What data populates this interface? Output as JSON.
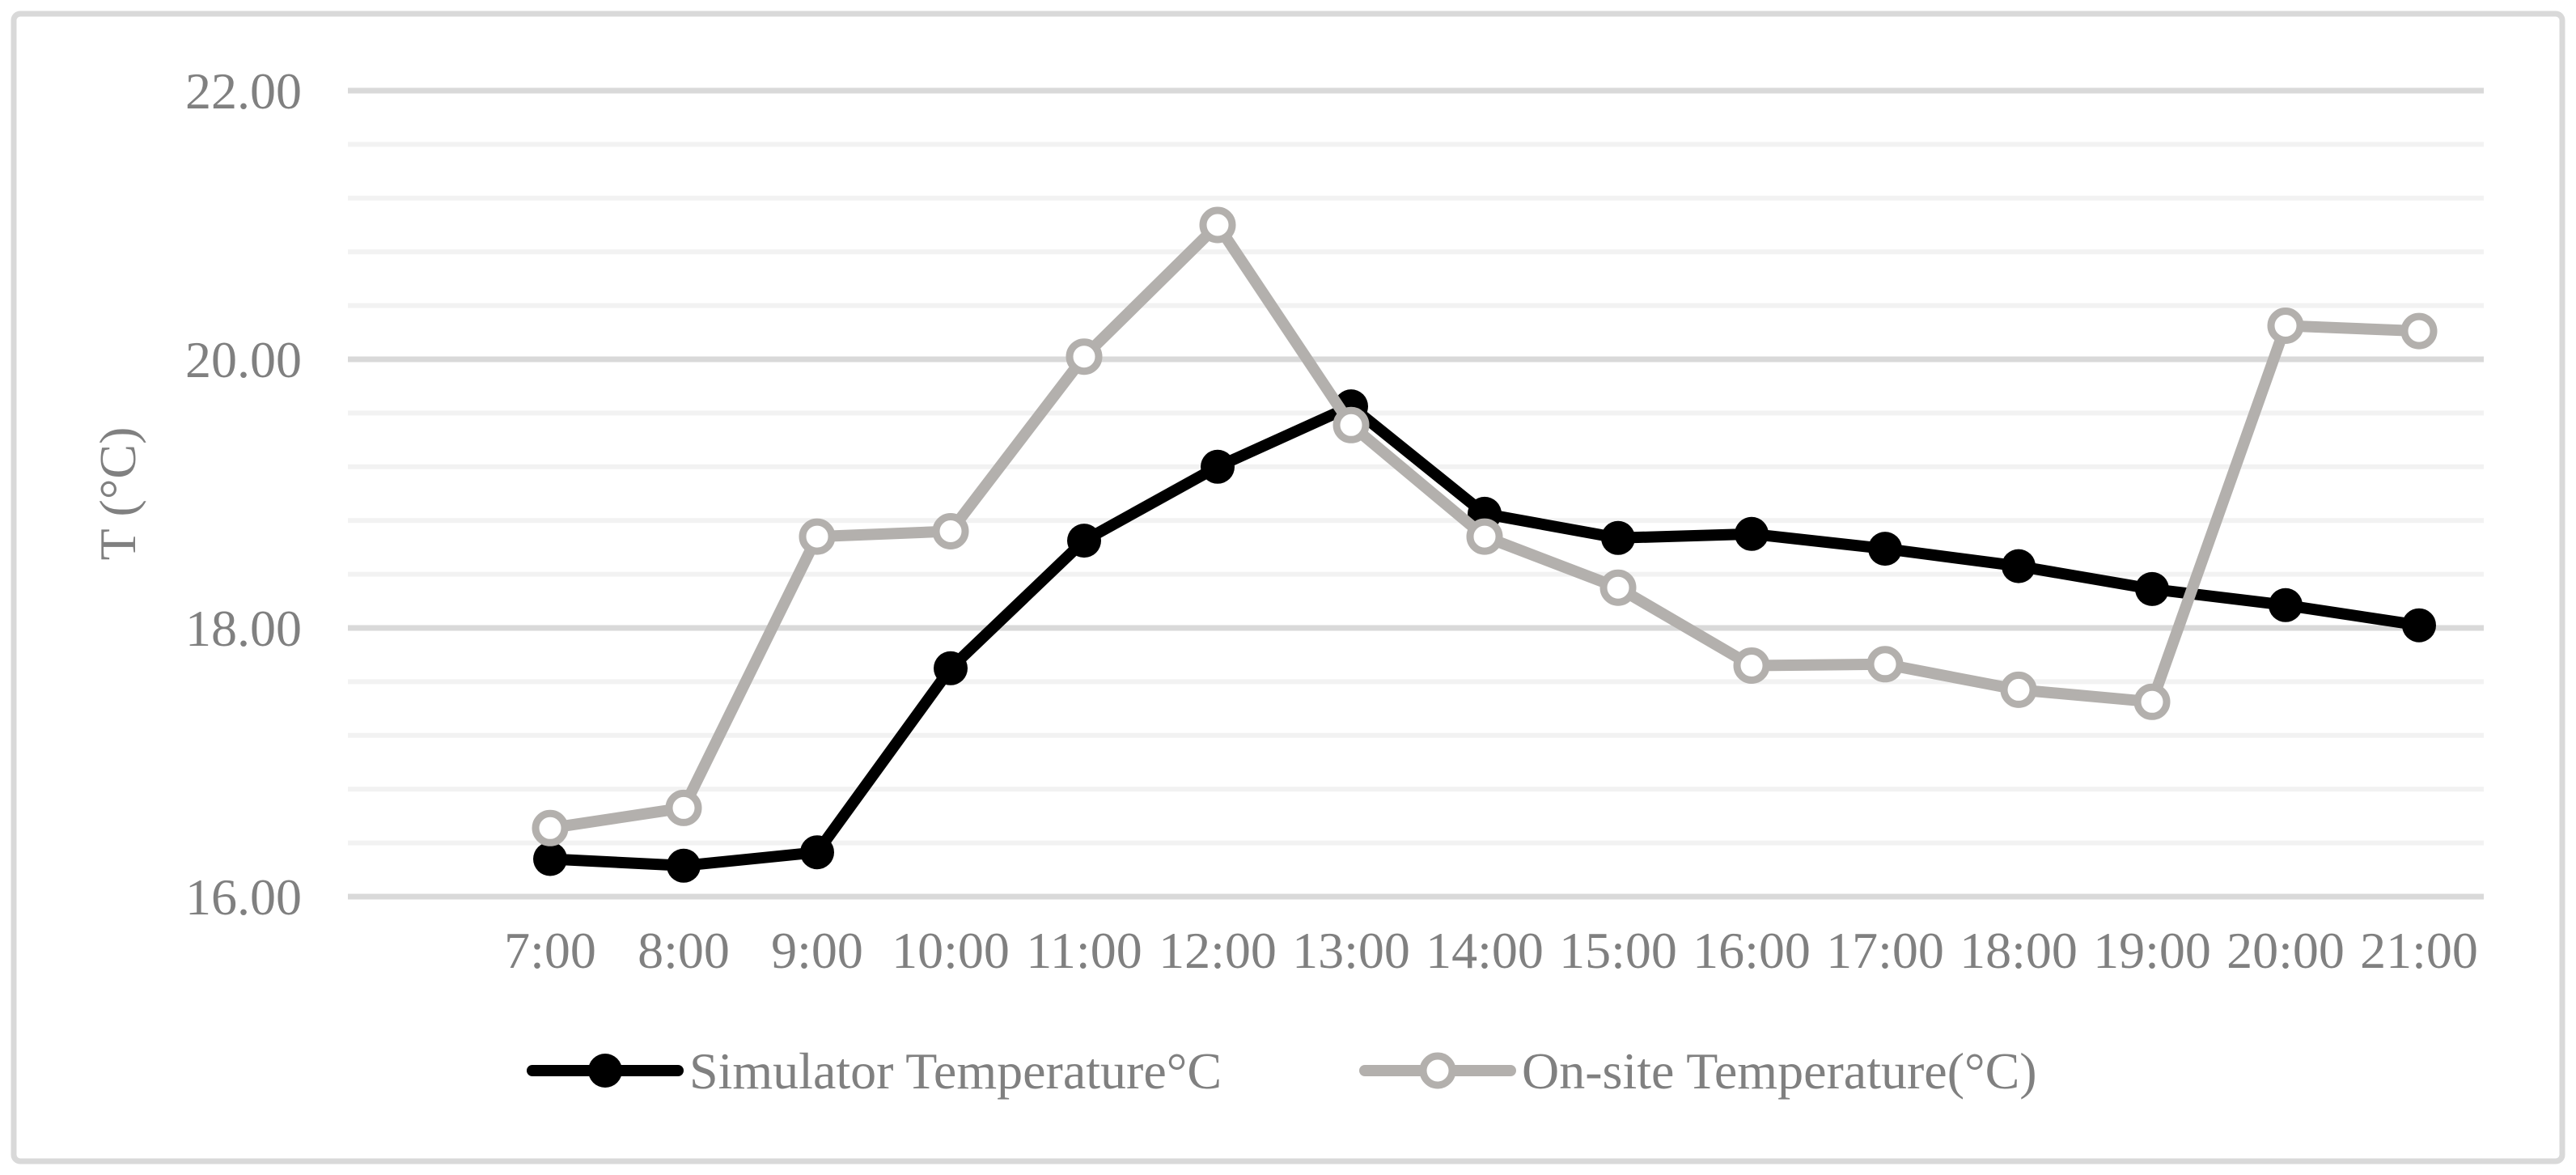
{
  "figure": {
    "background": "#ffffff",
    "border_color": "#d9d9d9"
  },
  "chart_data": {
    "type": "line",
    "title": "",
    "categories": [
      "7:00",
      "8:00",
      "9:00",
      "10:00",
      "11:00",
      "12:00",
      "13:00",
      "14:00",
      "15:00",
      "16:00",
      "17:00",
      "18:00",
      "19:00",
      "20:00",
      "21:00"
    ],
    "series": [
      {
        "name": "Simulator Temperature°C",
        "color": "#000000",
        "marker": "filled-circle",
        "values": [
          16.28,
          16.23,
          16.33,
          17.7,
          18.65,
          19.2,
          19.65,
          18.85,
          18.67,
          18.7,
          18.59,
          18.46,
          18.29,
          18.17,
          18.02
        ]
      },
      {
        "name": "On-site Temperature(°C)",
        "color": "#b3b0ad",
        "marker": "open-circle",
        "marker_fill": "#ffffff",
        "values": [
          16.51,
          16.66,
          18.68,
          18.72,
          20.02,
          21.0,
          19.51,
          18.68,
          18.3,
          17.72,
          17.73,
          17.54,
          17.45,
          20.25,
          20.21
        ]
      }
    ],
    "y_axis": {
      "label": "T (°C)",
      "min": 16,
      "max": 22,
      "major_step": 2,
      "minor_step": 0.4,
      "tick_labels": [
        "22.00",
        "20.00",
        "18.00",
        "16.00"
      ]
    },
    "x_axis": {
      "tick_labels": [
        "7:00",
        "8:00",
        "9:00",
        "10:00",
        "11:00",
        "12:00",
        "13:00",
        "14:00",
        "15:00",
        "16:00",
        "17:00",
        "18:00",
        "19:00",
        "20:00",
        "21:00"
      ]
    },
    "grid": {
      "major_color": "#d9d9d9",
      "minor_color": "#f2f2f2"
    },
    "legend": {
      "position": "bottom"
    },
    "text_color": "#808080"
  }
}
